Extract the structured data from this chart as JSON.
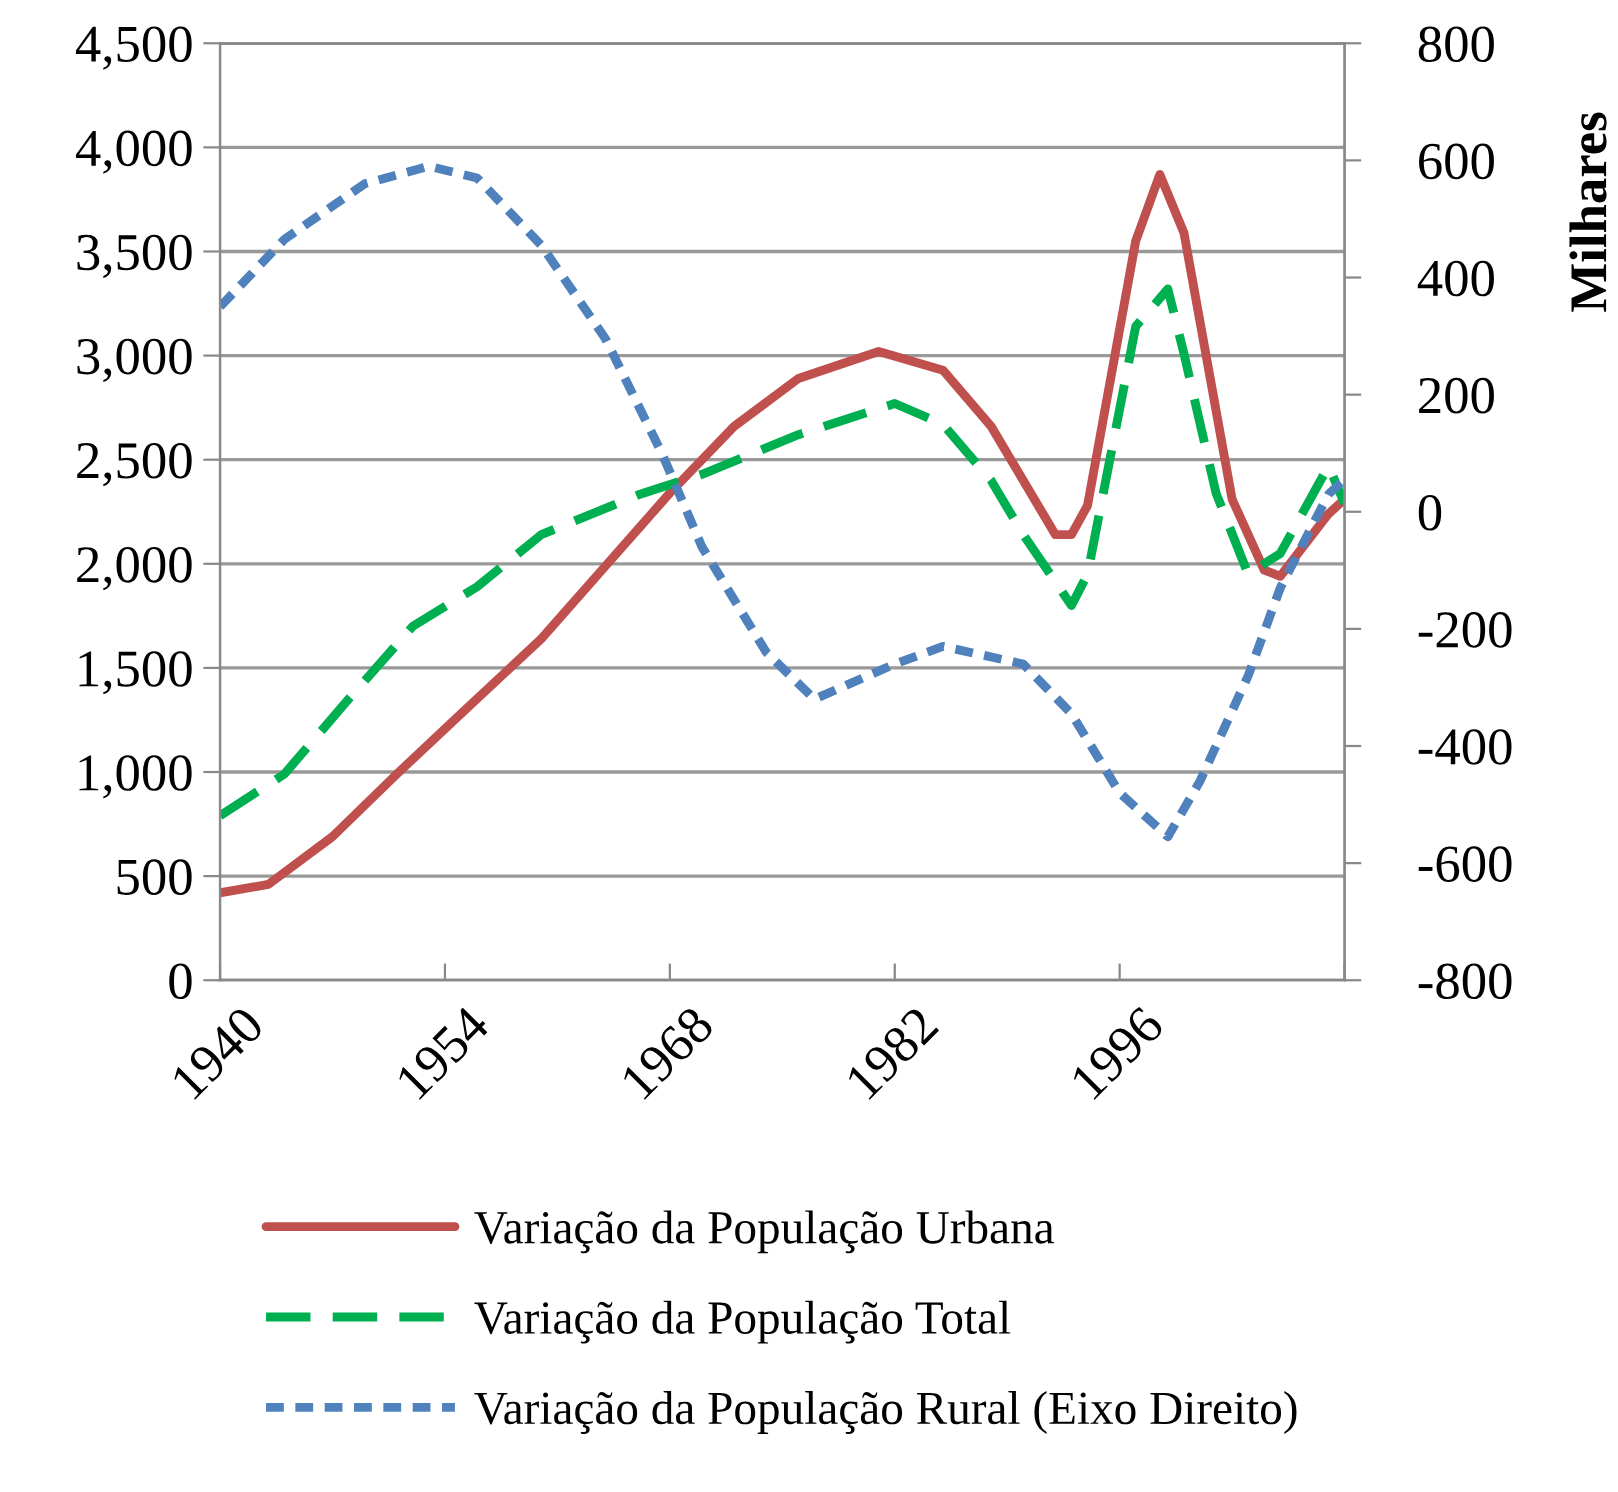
{
  "chart_data": {
    "type": "line",
    "y2label": "Milhares",
    "xlim": [
      1940,
      2010
    ],
    "xticks": [
      1940,
      1954,
      1968,
      1982,
      1996,
      {
        "value": 2010,
        "label": null
      }
    ],
    "ylim": [
      0,
      4500
    ],
    "yticks": [
      0,
      500,
      {
        "value": 1000,
        "label": "1,000"
      },
      {
        "value": 1500,
        "label": "1,500"
      },
      {
        "value": 2000,
        "label": "2,000"
      },
      {
        "value": 2500,
        "label": "2,500"
      },
      {
        "value": 3000,
        "label": "3,000"
      },
      {
        "value": 3500,
        "label": "3,500"
      },
      {
        "value": 4000,
        "label": "4,000"
      },
      {
        "value": 4500,
        "label": "4,500"
      }
    ],
    "y2lim": [
      -800,
      800
    ],
    "y2ticks": [
      -800,
      -600,
      -400,
      -200,
      0,
      200,
      400,
      600,
      800
    ],
    "grid": "y",
    "legend": "bottom",
    "series": [
      {
        "name": "Variação da População Urbana",
        "color": "#c0504d",
        "line_style": "solid",
        "x": [
          1940,
          1943,
          1947,
          1951,
          1955,
          1960,
          1964,
          1968,
          1972,
          1976,
          1981,
          1985,
          1988,
          1990,
          1992,
          1993,
          1994,
          1997,
          1998.5,
          2000,
          2003,
          2005,
          2006,
          2009,
          2010
        ],
        "values": [
          420,
          460,
          690,
          990,
          1280,
          1640,
          1990,
          2340,
          2660,
          2890,
          3020,
          2930,
          2660,
          2400,
          2140,
          2140,
          2280,
          3550,
          3870,
          3590,
          2310,
          1970,
          1940,
          2240,
          2310
        ]
      },
      {
        "name": "Variação da População Total",
        "color": "#00b050",
        "line_style": "dashed",
        "x": [
          1940,
          1944,
          1948,
          1952,
          1956,
          1960,
          1966,
          1970,
          1976,
          1982,
          1985,
          1988,
          1990,
          1993,
          1994,
          1997,
          1999,
          2000,
          2002,
          2004,
          2006,
          2009,
          2010
        ],
        "values": [
          790,
          990,
          1350,
          1700,
          1890,
          2140,
          2330,
          2430,
          2620,
          2770,
          2670,
          2400,
          2140,
          1800,
          1950,
          3140,
          3320,
          3010,
          2340,
          1950,
          2050,
          2470,
          2290
        ]
      },
      {
        "name": "Variação da População Rural (Eixo Direito)",
        "color": "#4f81bd",
        "line_style": "dotted",
        "axis": "y2",
        "x": [
          1940,
          1944,
          1949,
          1953,
          1956,
          1960,
          1964,
          1967.5,
          1970,
          1974,
          1977,
          1982,
          1985,
          1990,
          1993,
          1996,
          1999,
          2001,
          2004,
          2006,
          2009,
          2010
        ],
        "values": [
          350,
          465,
          560,
          590,
          570,
          455,
          295,
          100,
          -60,
          -240,
          -320,
          -260,
          -230,
          -260,
          -345,
          -480,
          -555,
          -460,
          -280,
          -130,
          30,
          55
        ]
      }
    ]
  }
}
